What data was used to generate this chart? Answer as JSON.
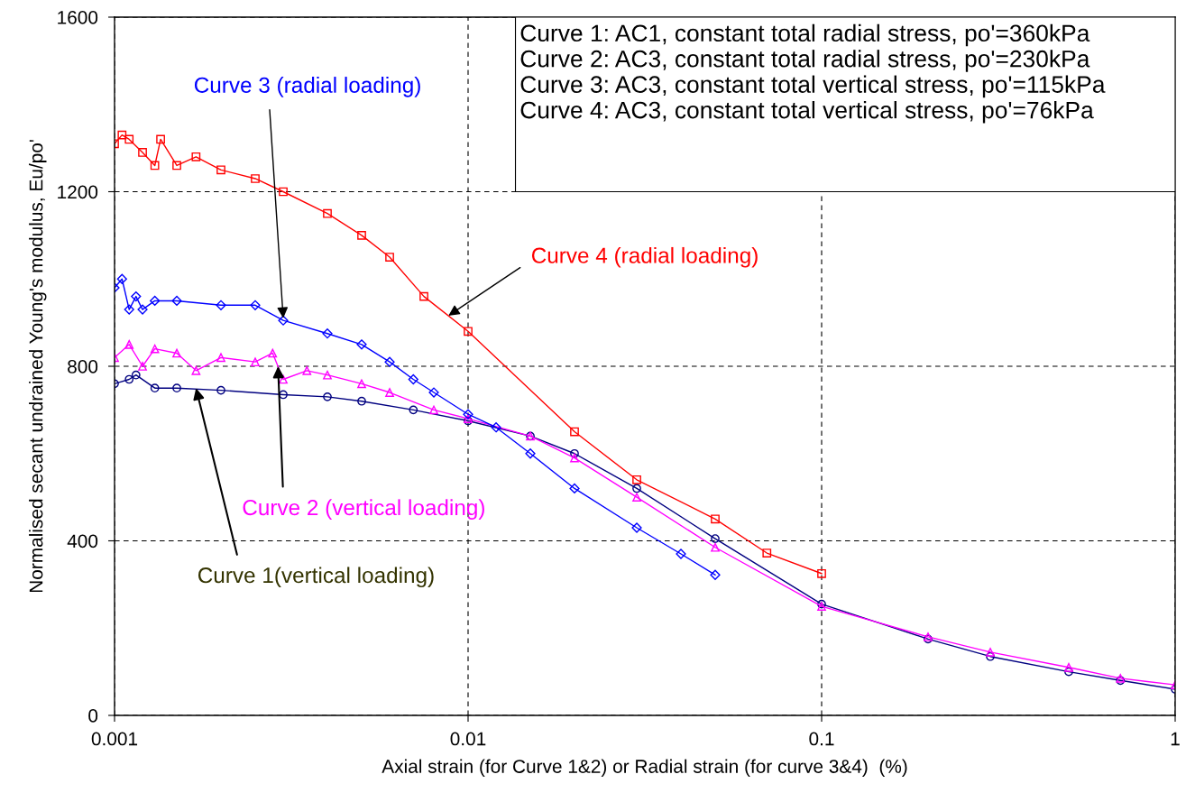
{
  "chart_data": {
    "type": "line",
    "xlabel": "Axial strain (for Curve 1&2) or Radial strain (for curve 3&4)  (%)",
    "ylabel": "Normalised secant undrained Young's modulus, Eu/po'",
    "log": "x",
    "xlim": [
      0.001,
      1
    ],
    "xticks": [
      0.001,
      0.01,
      0.1,
      1
    ],
    "ylim": [
      0,
      1600
    ],
    "yticks": [
      0,
      400,
      800,
      1200,
      1600
    ],
    "grid": true,
    "line_style": "solid",
    "series": [
      {
        "color": "#000080",
        "marker": "circle",
        "x": [
          0.001,
          0.0011,
          0.00115,
          0.0013,
          0.0015,
          0.002,
          0.003,
          0.004,
          0.005,
          0.007,
          0.01,
          0.015,
          0.02,
          0.03,
          0.05,
          0.1,
          0.2,
          0.3,
          0.5,
          0.7,
          1
        ],
        "values": [
          760,
          770,
          780,
          750,
          750,
          745,
          735,
          730,
          720,
          700,
          675,
          640,
          600,
          520,
          405,
          255,
          175,
          135,
          100,
          80,
          60
        ]
      },
      {
        "color": "#ff00ff",
        "marker": "triangle",
        "x": [
          0.001,
          0.0011,
          0.0012,
          0.0013,
          0.0015,
          0.0017,
          0.002,
          0.0025,
          0.0028,
          0.003,
          0.0035,
          0.004,
          0.005,
          0.006,
          0.008,
          0.01,
          0.015,
          0.02,
          0.03,
          0.05,
          0.1,
          0.2,
          0.3,
          0.5,
          0.7,
          1
        ],
        "values": [
          820,
          850,
          800,
          840,
          830,
          790,
          820,
          810,
          830,
          770,
          790,
          780,
          760,
          740,
          700,
          680,
          640,
          590,
          500,
          385,
          250,
          180,
          145,
          110,
          85,
          70
        ]
      },
      {
        "color": "#0000ff",
        "marker": "diamond",
        "x": [
          0.001,
          0.00105,
          0.0011,
          0.00115,
          0.0012,
          0.0013,
          0.0015,
          0.002,
          0.0025,
          0.003,
          0.004,
          0.005,
          0.006,
          0.007,
          0.008,
          0.01,
          0.012,
          0.015,
          0.02,
          0.03,
          0.04,
          0.05
        ],
        "values": [
          980,
          1000,
          930,
          960,
          930,
          950,
          950,
          940,
          940,
          905,
          875,
          850,
          810,
          770,
          740,
          690,
          660,
          600,
          520,
          430,
          370,
          322
        ]
      },
      {
        "color": "#ff0000",
        "marker": "square",
        "x": [
          0.001,
          0.00105,
          0.0011,
          0.0012,
          0.0013,
          0.00135,
          0.0015,
          0.0017,
          0.002,
          0.0025,
          0.003,
          0.004,
          0.005,
          0.006,
          0.0075,
          0.01,
          0.02,
          0.03,
          0.05,
          0.07,
          0.1
        ],
        "values": [
          1310,
          1330,
          1320,
          1290,
          1260,
          1320,
          1260,
          1280,
          1250,
          1230,
          1200,
          1150,
          1100,
          1050,
          960,
          880,
          650,
          540,
          450,
          372,
          325
        ]
      }
    ],
    "annotations": [
      "Curve 1: AC1, constant total radial stress, po'=360kPa",
      "Curve 2: AC3, constant total radial stress, po'=230kPa",
      "Curve 3: AC3, constant total vertical stress, po'=115kPa",
      "Curve 4: AC3, constant total vertical stress, po'=76kPa",
      {
        "text": "Curve 1(vertical loading)",
        "x": 0.0017,
        "y": 750
      },
      {
        "text": "Curve 2 (vertical loading)",
        "x": 0.0029,
        "y": 800
      },
      {
        "text": "Curve 3 (radial loading)",
        "x": 0.003,
        "y": 910
      },
      {
        "text": "Curve 4 (radial loading)",
        "x": 0.0088,
        "y": 916
      }
    ]
  }
}
